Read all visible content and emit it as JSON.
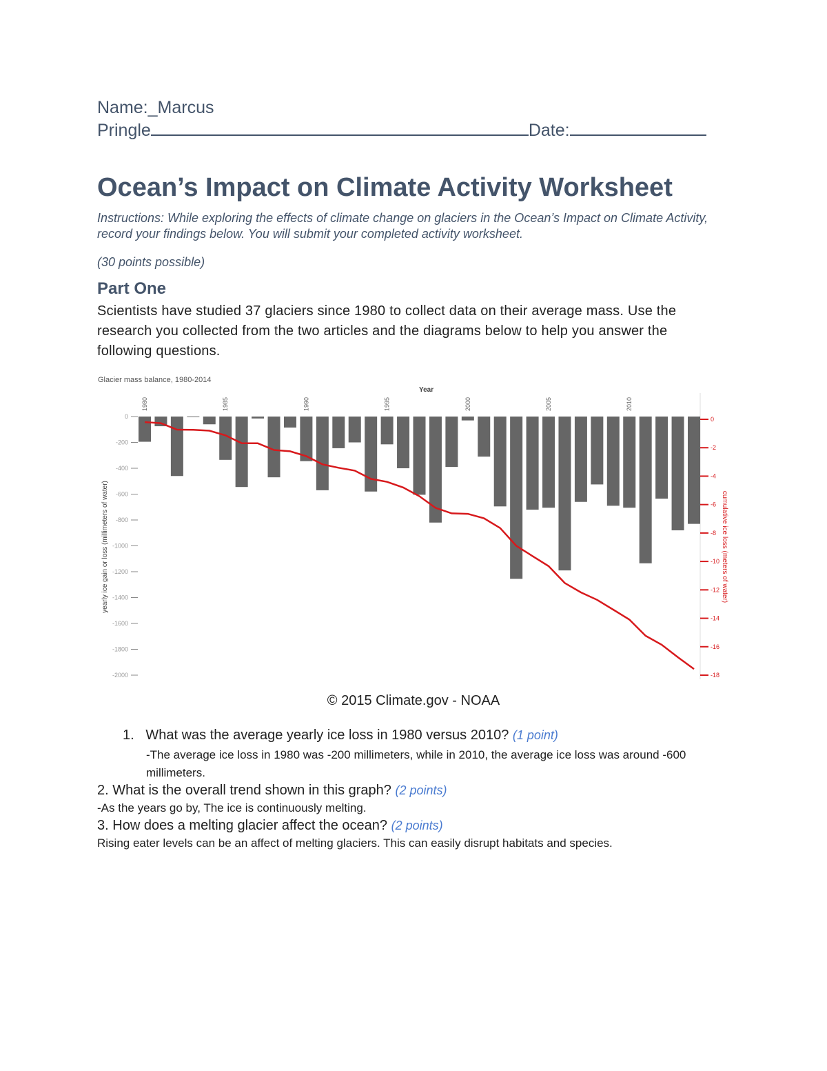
{
  "header": {
    "name_label": "Name:_Marcus",
    "name_cont": "Pringle",
    "date_label": "Date:"
  },
  "title": "Ocean’s Impact on Climate Activity Worksheet",
  "instructions": "Instructions: While exploring the effects of climate change on glaciers in the Ocean’s Impact on Climate Activity, record your findings below. You will submit your completed activity worksheet.",
  "points_possible": "(30 points possible)",
  "part_one": {
    "heading": "Part One",
    "intro": "Scientists have studied 37 glaciers since 1980 to collect data on their average mass. Use the research you collected from the two articles and the diagrams below to help you answer the following questions."
  },
  "chart_data": {
    "type": "bar",
    "title": "Glacier mass balance, 1980-2014",
    "xlabel": "Year",
    "ylabel": "yearly ice gain or loss (millimeters of water)",
    "y2label": "cumulative ice loss (meters of water)",
    "ylim": [
      -2000,
      0
    ],
    "y2lim": [
      -18,
      0
    ],
    "yticks": [
      "0",
      "-200",
      "-400",
      "-600",
      "-800",
      "-1000",
      "-1200",
      "-1400",
      "-1600",
      "-1800",
      "-2000"
    ],
    "y2ticks": [
      "0",
      "-2",
      "-4",
      "-6",
      "-8",
      "-10",
      "-12",
      "-14",
      "-16",
      "-18"
    ],
    "xtick_labels": [
      "1980",
      "1985",
      "1990",
      "1995",
      "2000",
      "2005",
      "2010"
    ],
    "grid": false,
    "bar_color": "#666666",
    "line_color": "#d7191c",
    "categories": [
      1980,
      1981,
      1982,
      1983,
      1984,
      1985,
      1986,
      1987,
      1988,
      1989,
      1990,
      1991,
      1992,
      1993,
      1994,
      1995,
      1996,
      1997,
      1998,
      1999,
      2000,
      2001,
      2002,
      2003,
      2004,
      2005,
      2006,
      2007,
      2008,
      2009,
      2010,
      2011,
      2012,
      2013,
      2014
    ],
    "series": [
      {
        "type": "bar",
        "axis": "left",
        "values": [
          -195,
          -75,
          -460,
          -5,
          -60,
          -335,
          -545,
          -15,
          -470,
          -85,
          -345,
          -570,
          -245,
          -200,
          -580,
          -215,
          -400,
          -605,
          -820,
          -390,
          -30,
          -310,
          -695,
          -1255,
          -720,
          -705,
          -1190,
          -660,
          -525,
          -690,
          -705,
          -1135,
          -635,
          -880,
          -830
        ]
      },
      {
        "type": "line",
        "axis": "right",
        "values": [
          -0.2,
          -0.27,
          -0.73,
          -0.74,
          -0.8,
          -1.13,
          -1.68,
          -1.69,
          -2.16,
          -2.25,
          -2.59,
          -3.17,
          -3.41,
          -3.61,
          -4.19,
          -4.4,
          -4.8,
          -5.41,
          -6.23,
          -6.62,
          -6.65,
          -6.96,
          -7.65,
          -8.9,
          -9.62,
          -10.33,
          -11.52,
          -12.18,
          -12.7,
          -13.39,
          -14.09,
          -15.23,
          -15.86,
          -16.74,
          -17.57
        ]
      }
    ]
  },
  "credit": "© 2015 Climate.gov - NOAA",
  "questions": [
    {
      "number": "1.",
      "text": "What was the average yearly ice loss in 1980 versus 2010?",
      "points": "(1 point)",
      "answer": "-The average ice loss in 1980 was -200 millimeters, while in 2010, the average ice loss was around -600 millimeters."
    },
    {
      "number": "2.",
      "text": "What is the overall trend shown in this graph?",
      "points": "(2 points)",
      "answer": "-As the years go by, The ice is continuously melting."
    },
    {
      "number": "3.",
      "text": "How does a melting glacier affect the ocean?",
      "points": "(2 points)",
      "answer": "Rising eater levels can be an affect of melting glaciers. This can easily disrupt habitats and species."
    }
  ]
}
